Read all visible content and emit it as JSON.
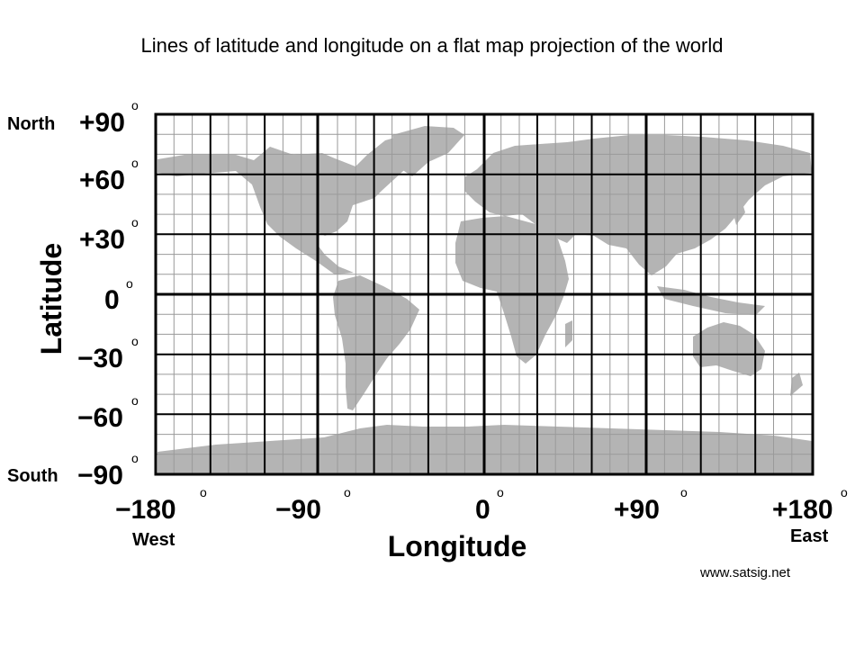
{
  "title": "Lines of latitude and longitude on a flat map projection of the world",
  "axes": {
    "y_title": "Latitude",
    "x_title": "Longitude",
    "north_label": "North",
    "south_label": "South",
    "west_label": "West",
    "east_label": "East",
    "degree_symbol": "o",
    "lat_ticks": [
      "+90",
      "+60",
      "+30",
      "0",
      "−30",
      "−60",
      "−90"
    ],
    "lon_ticks": [
      "−180",
      "−90",
      "0",
      "+90",
      "+180"
    ]
  },
  "grid": {
    "major_step_deg": 30,
    "minor_step_deg": 10,
    "major_color": "#000000",
    "minor_color": "#9a9a9a",
    "land_color": "#b4b4b4",
    "ocean_color": "#ffffff"
  },
  "watermark": "www.satsig.net"
}
